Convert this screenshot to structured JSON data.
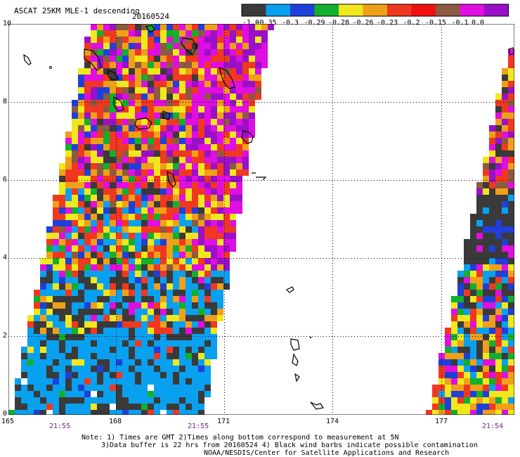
{
  "title": {
    "product": "ASCAT 25KM MLE-1 descending",
    "date": "20160524"
  },
  "colorbar": {
    "labels": [
      "-1.0",
      "-0.35",
      "-0.3",
      "-0.29",
      "-0.28",
      "-0.26",
      "-0.23",
      "-0.2",
      "-0.15",
      "-0.1",
      "0.0"
    ],
    "colors": [
      "#3a3a3a",
      "#0aa0f0",
      "#1f40d8",
      "#12b02c",
      "#f0e81c",
      "#f0a018",
      "#f03820",
      "#f01010",
      "#8c5a40",
      "#e00ee0",
      "#9a10c8"
    ]
  },
  "map": {
    "lon_labels": [
      "165",
      "168",
      "171",
      "174",
      "177"
    ],
    "lat_labels": [
      "0",
      "2",
      "4",
      "6",
      "8",
      "10"
    ],
    "pass_times": [
      "21:55",
      "21:55",
      "21:54"
    ]
  },
  "footer": {
    "line1": "Note: 1) Times are GMT 2)Times along bottom correspond to measurement at 5N",
    "line2": "3)Data buffer is 22 hrs from 20160524 4) Black wind barbs indicate possible contamination",
    "line3": "NOAA/NESDIS/Center for Satellite Applications and Research"
  }
}
